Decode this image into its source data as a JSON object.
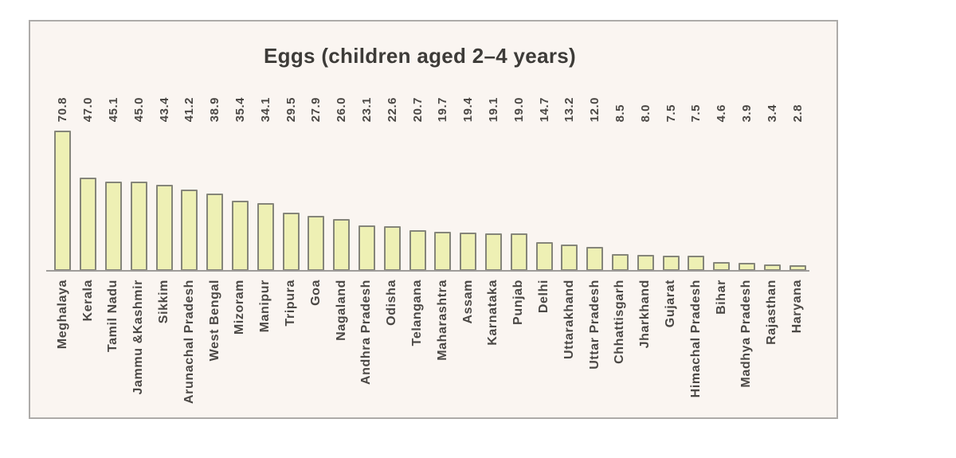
{
  "chart_data": {
    "type": "bar",
    "title": "Eggs (children aged 2–4 years)",
    "orientation": "vertical",
    "categories": [
      "Meghalaya",
      "Kerala",
      "Tamil Nadu",
      "Jammu &Kashmir",
      "Sikkim",
      "Arunachal Pradesh",
      "West Bengal",
      "Mizoram",
      "Manipur",
      "Tripura",
      "Goa",
      "Nagaland",
      "Andhra Pradesh",
      "Odisha",
      "Telangana",
      "Maharashtra",
      "Assam",
      "Karnataka",
      "Punjab",
      "Delhi",
      "Uttarakhand",
      "Uttar Pradesh",
      "Chhattisgarh",
      "Jharkhand",
      "Gujarat",
      "Himachal Pradesh",
      "Bihar",
      "Madhya Pradesh",
      "Rajasthan",
      "Haryana"
    ],
    "values": [
      70.8,
      47.0,
      45.1,
      45.0,
      43.4,
      41.2,
      38.9,
      35.4,
      34.1,
      29.5,
      27.9,
      26.0,
      23.1,
      22.6,
      20.7,
      19.7,
      19.4,
      19.1,
      19.0,
      14.7,
      13.2,
      12.0,
      8.5,
      8.0,
      7.5,
      7.5,
      4.6,
      3.9,
      3.4,
      2.8
    ],
    "value_labels": [
      "70.8",
      "47.0",
      "45.1",
      "45.0",
      "43.4",
      "41.2",
      "38.9",
      "35.4",
      "34.1",
      "29.5",
      "27.9",
      "26.0",
      "23.1",
      "22.6",
      "20.7",
      "19.7",
      "19.4",
      "19.1",
      "19.0",
      "14.7",
      "13.2",
      "12.0",
      "8.5",
      "8.0",
      "7.5",
      "7.5",
      "4.6",
      "3.9",
      "3.4",
      "2.8"
    ],
    "xlabel": "",
    "ylabel": "",
    "ylim": [
      0,
      75
    ],
    "grid": false,
    "legend": false,
    "value_labels_shown": true,
    "tick_label_rotation_degrees": 90,
    "colors": {
      "bar_fill": "#eef0b4",
      "bar_border": "#85857a",
      "background": "#faf5f1",
      "frame_border": "#adaba9",
      "axis_line": "#9f9c99",
      "text": "#4b4845",
      "title_text": "#3d3b38"
    }
  }
}
